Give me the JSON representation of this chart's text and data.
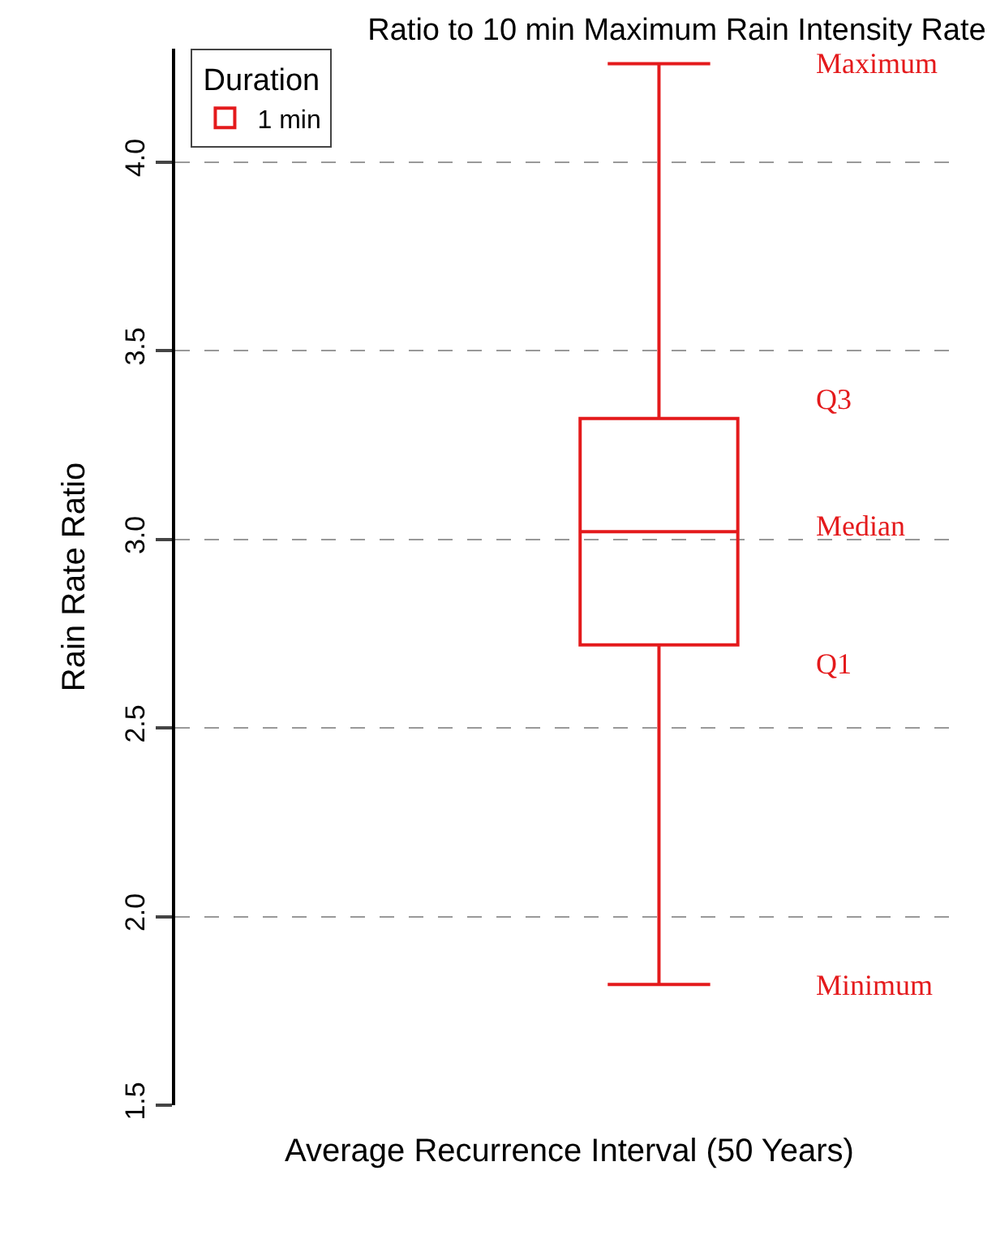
{
  "chart_data": {
    "type": "box",
    "title": "Ratio to 10 min Maximum Rain Intensity Rate",
    "xlabel": "Average Recurrence Interval (50 Years)",
    "ylabel": "Rain Rate Ratio",
    "legend_title": "Duration",
    "categories": [
      null
    ],
    "series": [
      {
        "name": "1 min",
        "color": "#e41a1c",
        "boxes": [
          {
            "low": 1.82,
            "q1": 2.72,
            "median": 3.02,
            "q3": 3.32,
            "high": 4.26
          }
        ]
      }
    ],
    "ylim": [
      1.5,
      4.3
    ],
    "yticks": [
      {
        "value": 1.5,
        "label": "1.5"
      },
      {
        "value": 2.0,
        "label": "2.0"
      },
      {
        "value": 2.5,
        "label": "2.5"
      },
      {
        "value": 3.0,
        "label": "3.0"
      },
      {
        "value": 3.5,
        "label": "3.5"
      },
      {
        "value": 4.0,
        "label": "4.0"
      }
    ],
    "grid": "y",
    "legend": "top left",
    "tick_labels": "y",
    "annotations": [
      "Maximum",
      "Q3",
      "Median",
      "Q1",
      "Minimum"
    ]
  }
}
